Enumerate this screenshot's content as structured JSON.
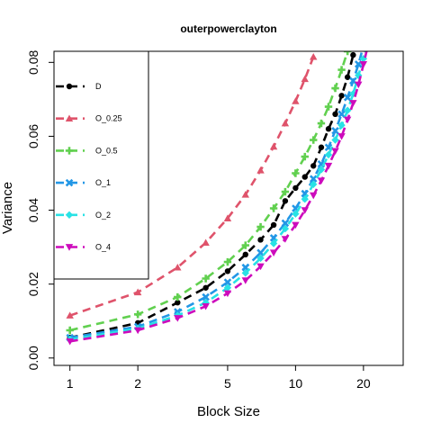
{
  "chart_data": {
    "type": "line",
    "title": "outerpowerclayton",
    "xlabel": "Block Size",
    "ylabel": "Variance",
    "xscale": "log",
    "xlim": [
      0.85,
      30
    ],
    "ylim": [
      -0.002,
      0.083
    ],
    "x_ticks": [
      1,
      2,
      5,
      10,
      20
    ],
    "y_ticks": [
      0.0,
      0.02,
      0.04,
      0.06,
      0.08
    ],
    "x_tick_labels": [
      "1",
      "2",
      "5",
      "10",
      "20"
    ],
    "y_tick_labels": [
      "0.00",
      "0.02",
      "0.04",
      "0.06",
      "0.08"
    ],
    "legend_position": "top-left",
    "grid": false,
    "series": [
      {
        "name": "D",
        "color": "#000000",
        "marker": "circle",
        "x": [
          1,
          2,
          3,
          4,
          5,
          6,
          7,
          8,
          9,
          10,
          11,
          12,
          13,
          14,
          15,
          16,
          17,
          18,
          19,
          20
        ],
        "y": [
          0.0055,
          0.0095,
          0.015,
          0.019,
          0.0235,
          0.028,
          0.032,
          0.036,
          0.0425,
          0.046,
          0.049,
          0.052,
          0.057,
          0.062,
          0.066,
          0.071,
          0.076,
          0.082,
          0.087,
          0.092
        ]
      },
      {
        "name": "O_0.25",
        "color": "#DF536B",
        "marker": "triangle",
        "x": [
          1,
          2,
          3,
          4,
          5,
          6,
          7,
          8,
          9,
          10,
          11,
          12
        ],
        "y": [
          0.0115,
          0.0178,
          0.0245,
          0.0312,
          0.0378,
          0.0442,
          0.0508,
          0.0572,
          0.0635,
          0.0695,
          0.0755,
          0.0815
        ]
      },
      {
        "name": "O_0.5",
        "color": "#61D04F",
        "marker": "plus",
        "x": [
          1,
          2,
          3,
          4,
          5,
          6,
          7,
          8,
          9,
          10,
          11,
          12,
          13,
          14,
          15,
          16,
          17
        ],
        "y": [
          0.0075,
          0.0118,
          0.0165,
          0.0215,
          0.026,
          0.0305,
          0.0355,
          0.0405,
          0.045,
          0.05,
          0.0545,
          0.059,
          0.0635,
          0.068,
          0.073,
          0.078,
          0.083
        ]
      },
      {
        "name": "O_1",
        "color": "#2297E6",
        "marker": "cross",
        "x": [
          1,
          2,
          3,
          4,
          5,
          6,
          7,
          8,
          9,
          10,
          11,
          12,
          13,
          14,
          15,
          16,
          17,
          18,
          19,
          20,
          21
        ],
        "y": [
          0.0055,
          0.0085,
          0.0125,
          0.0165,
          0.0205,
          0.0245,
          0.0285,
          0.0325,
          0.0365,
          0.0405,
          0.0445,
          0.0485,
          0.0525,
          0.057,
          0.0615,
          0.066,
          0.0705,
          0.075,
          0.0795,
          0.0845,
          0.089
        ]
      },
      {
        "name": "O_2",
        "color": "#28E2E5",
        "marker": "diamond",
        "x": [
          1,
          2,
          3,
          4,
          5,
          6,
          7,
          8,
          9,
          10,
          11,
          12,
          13,
          14,
          15,
          16,
          17,
          18,
          19,
          20,
          21
        ],
        "y": [
          0.005,
          0.008,
          0.0115,
          0.015,
          0.019,
          0.023,
          0.027,
          0.031,
          0.035,
          0.039,
          0.043,
          0.047,
          0.051,
          0.055,
          0.059,
          0.063,
          0.067,
          0.0715,
          0.0765,
          0.081,
          0.086
        ]
      },
      {
        "name": "O_4",
        "color": "#CD0BBC",
        "marker": "triangle-down",
        "x": [
          1,
          2,
          3,
          4,
          5,
          6,
          7,
          8,
          9,
          10,
          11,
          12,
          13,
          14,
          15,
          16,
          17,
          18,
          19,
          20,
          21
        ],
        "y": [
          0.0045,
          0.0075,
          0.0108,
          0.014,
          0.0175,
          0.021,
          0.0248,
          0.0285,
          0.0322,
          0.036,
          0.04,
          0.044,
          0.048,
          0.052,
          0.056,
          0.06,
          0.0645,
          0.069,
          0.074,
          0.0795,
          0.085
        ]
      }
    ]
  }
}
